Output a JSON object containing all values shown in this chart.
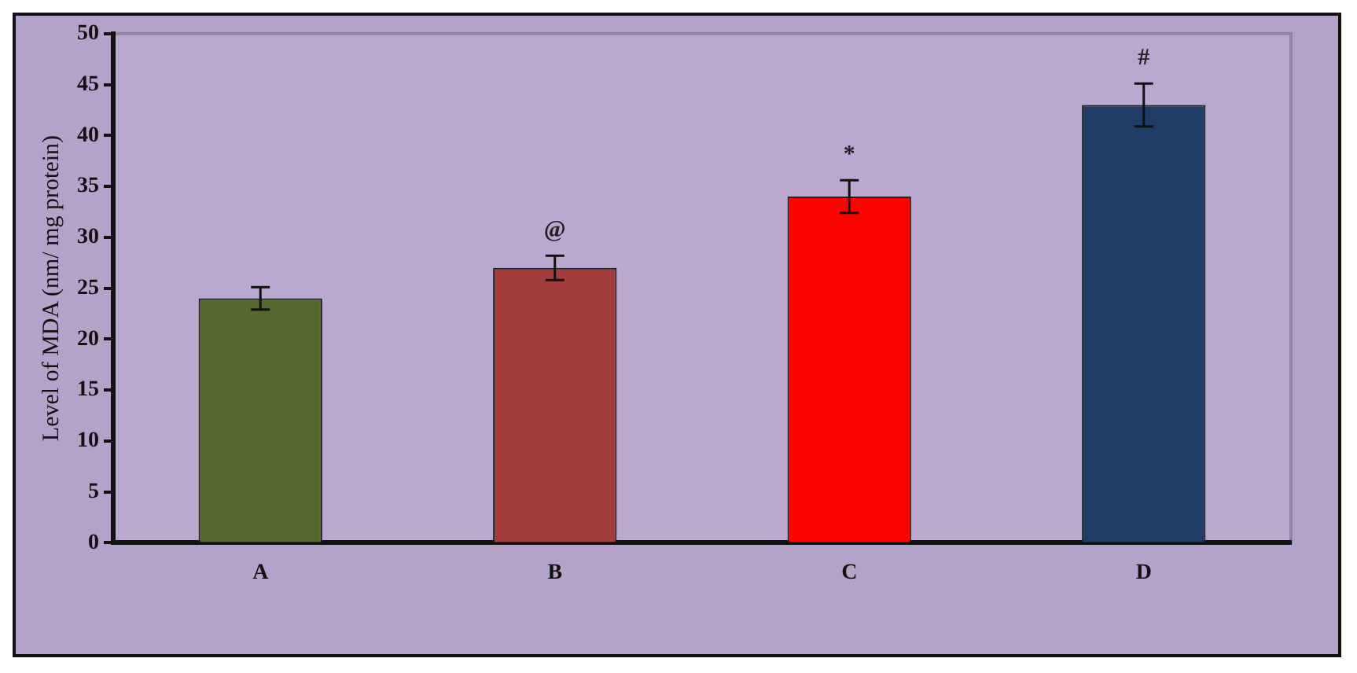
{
  "chart_data": {
    "type": "bar",
    "ylabel": "Level of MDA (nm/ mg protein)",
    "categories": [
      "A",
      "B",
      "C",
      "D"
    ],
    "values": [
      24,
      27,
      34,
      43
    ],
    "colors": [
      "#55692e",
      "#a23d3b",
      "#fa0404",
      "#1f3d66"
    ],
    "errors": [
      1.1,
      1.2,
      1.6,
      2.1
    ],
    "ylim": [
      0,
      50
    ],
    "yticks": [
      0,
      5,
      10,
      15,
      20,
      25,
      30,
      35,
      40,
      45,
      50
    ],
    "grid": false,
    "annotations": [
      {
        "text": "@",
        "x": "B",
        "y": 27
      },
      {
        "text": "*",
        "x": "C",
        "y": 34
      },
      {
        "text": "#",
        "x": "D",
        "y": 43
      }
    ]
  }
}
